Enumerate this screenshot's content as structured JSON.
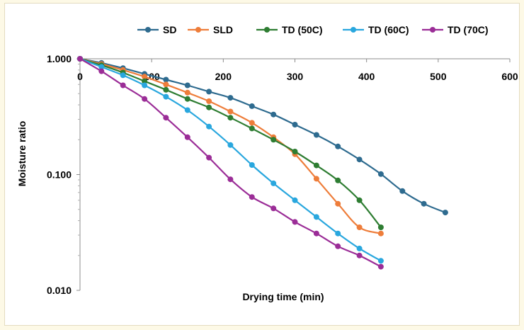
{
  "chart_data": {
    "type": "line",
    "title": "",
    "xlabel": "Drying time  (min)",
    "ylabel": "Moisture ratio",
    "xlim": [
      0,
      600
    ],
    "ylim": [
      0.01,
      1.0
    ],
    "y_scale": "log",
    "grid": false,
    "legend_position": "top",
    "x_ticks": [
      "0",
      "100",
      "200",
      "300",
      "400",
      "500",
      "600"
    ],
    "x_tick_values": [
      0,
      100,
      200,
      300,
      400,
      500,
      600
    ],
    "y_ticks": [
      "1.000",
      "0.100",
      "0.010"
    ],
    "y_tick_values": [
      1.0,
      0.1,
      0.01
    ],
    "series": [
      {
        "name": "SD",
        "color": "#2e6b8f",
        "x": [
          0,
          30,
          60,
          90,
          120,
          150,
          180,
          210,
          240,
          270,
          300,
          330,
          360,
          390,
          420,
          450,
          480,
          510
        ],
        "y": [
          1.0,
          0.92,
          0.83,
          0.74,
          0.66,
          0.59,
          0.52,
          0.46,
          0.39,
          0.33,
          0.27,
          0.22,
          0.175,
          0.135,
          0.101,
          0.072,
          0.056,
          0.047
        ]
      },
      {
        "name": "SLD",
        "color": "#ee7d3a",
        "x": [
          0,
          30,
          60,
          90,
          120,
          150,
          180,
          210,
          240,
          270,
          300,
          330,
          360,
          390,
          420
        ],
        "y": [
          1.0,
          0.9,
          0.8,
          0.7,
          0.6,
          0.51,
          0.43,
          0.35,
          0.28,
          0.21,
          0.15,
          0.092,
          0.056,
          0.035,
          0.031
        ]
      },
      {
        "name": "TD (50C)",
        "color": "#2e7d32",
        "x": [
          0,
          30,
          60,
          90,
          120,
          150,
          180,
          210,
          240,
          270,
          300,
          330,
          360,
          390,
          420
        ],
        "y": [
          1.0,
          0.88,
          0.76,
          0.64,
          0.54,
          0.45,
          0.38,
          0.31,
          0.25,
          0.2,
          0.158,
          0.12,
          0.089,
          0.06,
          0.035
        ]
      },
      {
        "name": "TD (60C)",
        "color": "#29a7de",
        "x": [
          0,
          30,
          60,
          90,
          120,
          150,
          180,
          210,
          240,
          270,
          300,
          330,
          360,
          390,
          420
        ],
        "y": [
          1.0,
          0.85,
          0.72,
          0.59,
          0.47,
          0.36,
          0.26,
          0.18,
          0.121,
          0.084,
          0.06,
          0.043,
          0.031,
          0.023,
          0.018
        ]
      },
      {
        "name": "TD (70C)",
        "color": "#9b2d97",
        "x": [
          0,
          30,
          60,
          90,
          120,
          150,
          180,
          210,
          240,
          270,
          300,
          330,
          360,
          390,
          420
        ],
        "y": [
          1.0,
          0.78,
          0.59,
          0.45,
          0.31,
          0.21,
          0.14,
          0.091,
          0.064,
          0.051,
          0.039,
          0.031,
          0.024,
          0.02,
          0.016
        ]
      }
    ]
  }
}
